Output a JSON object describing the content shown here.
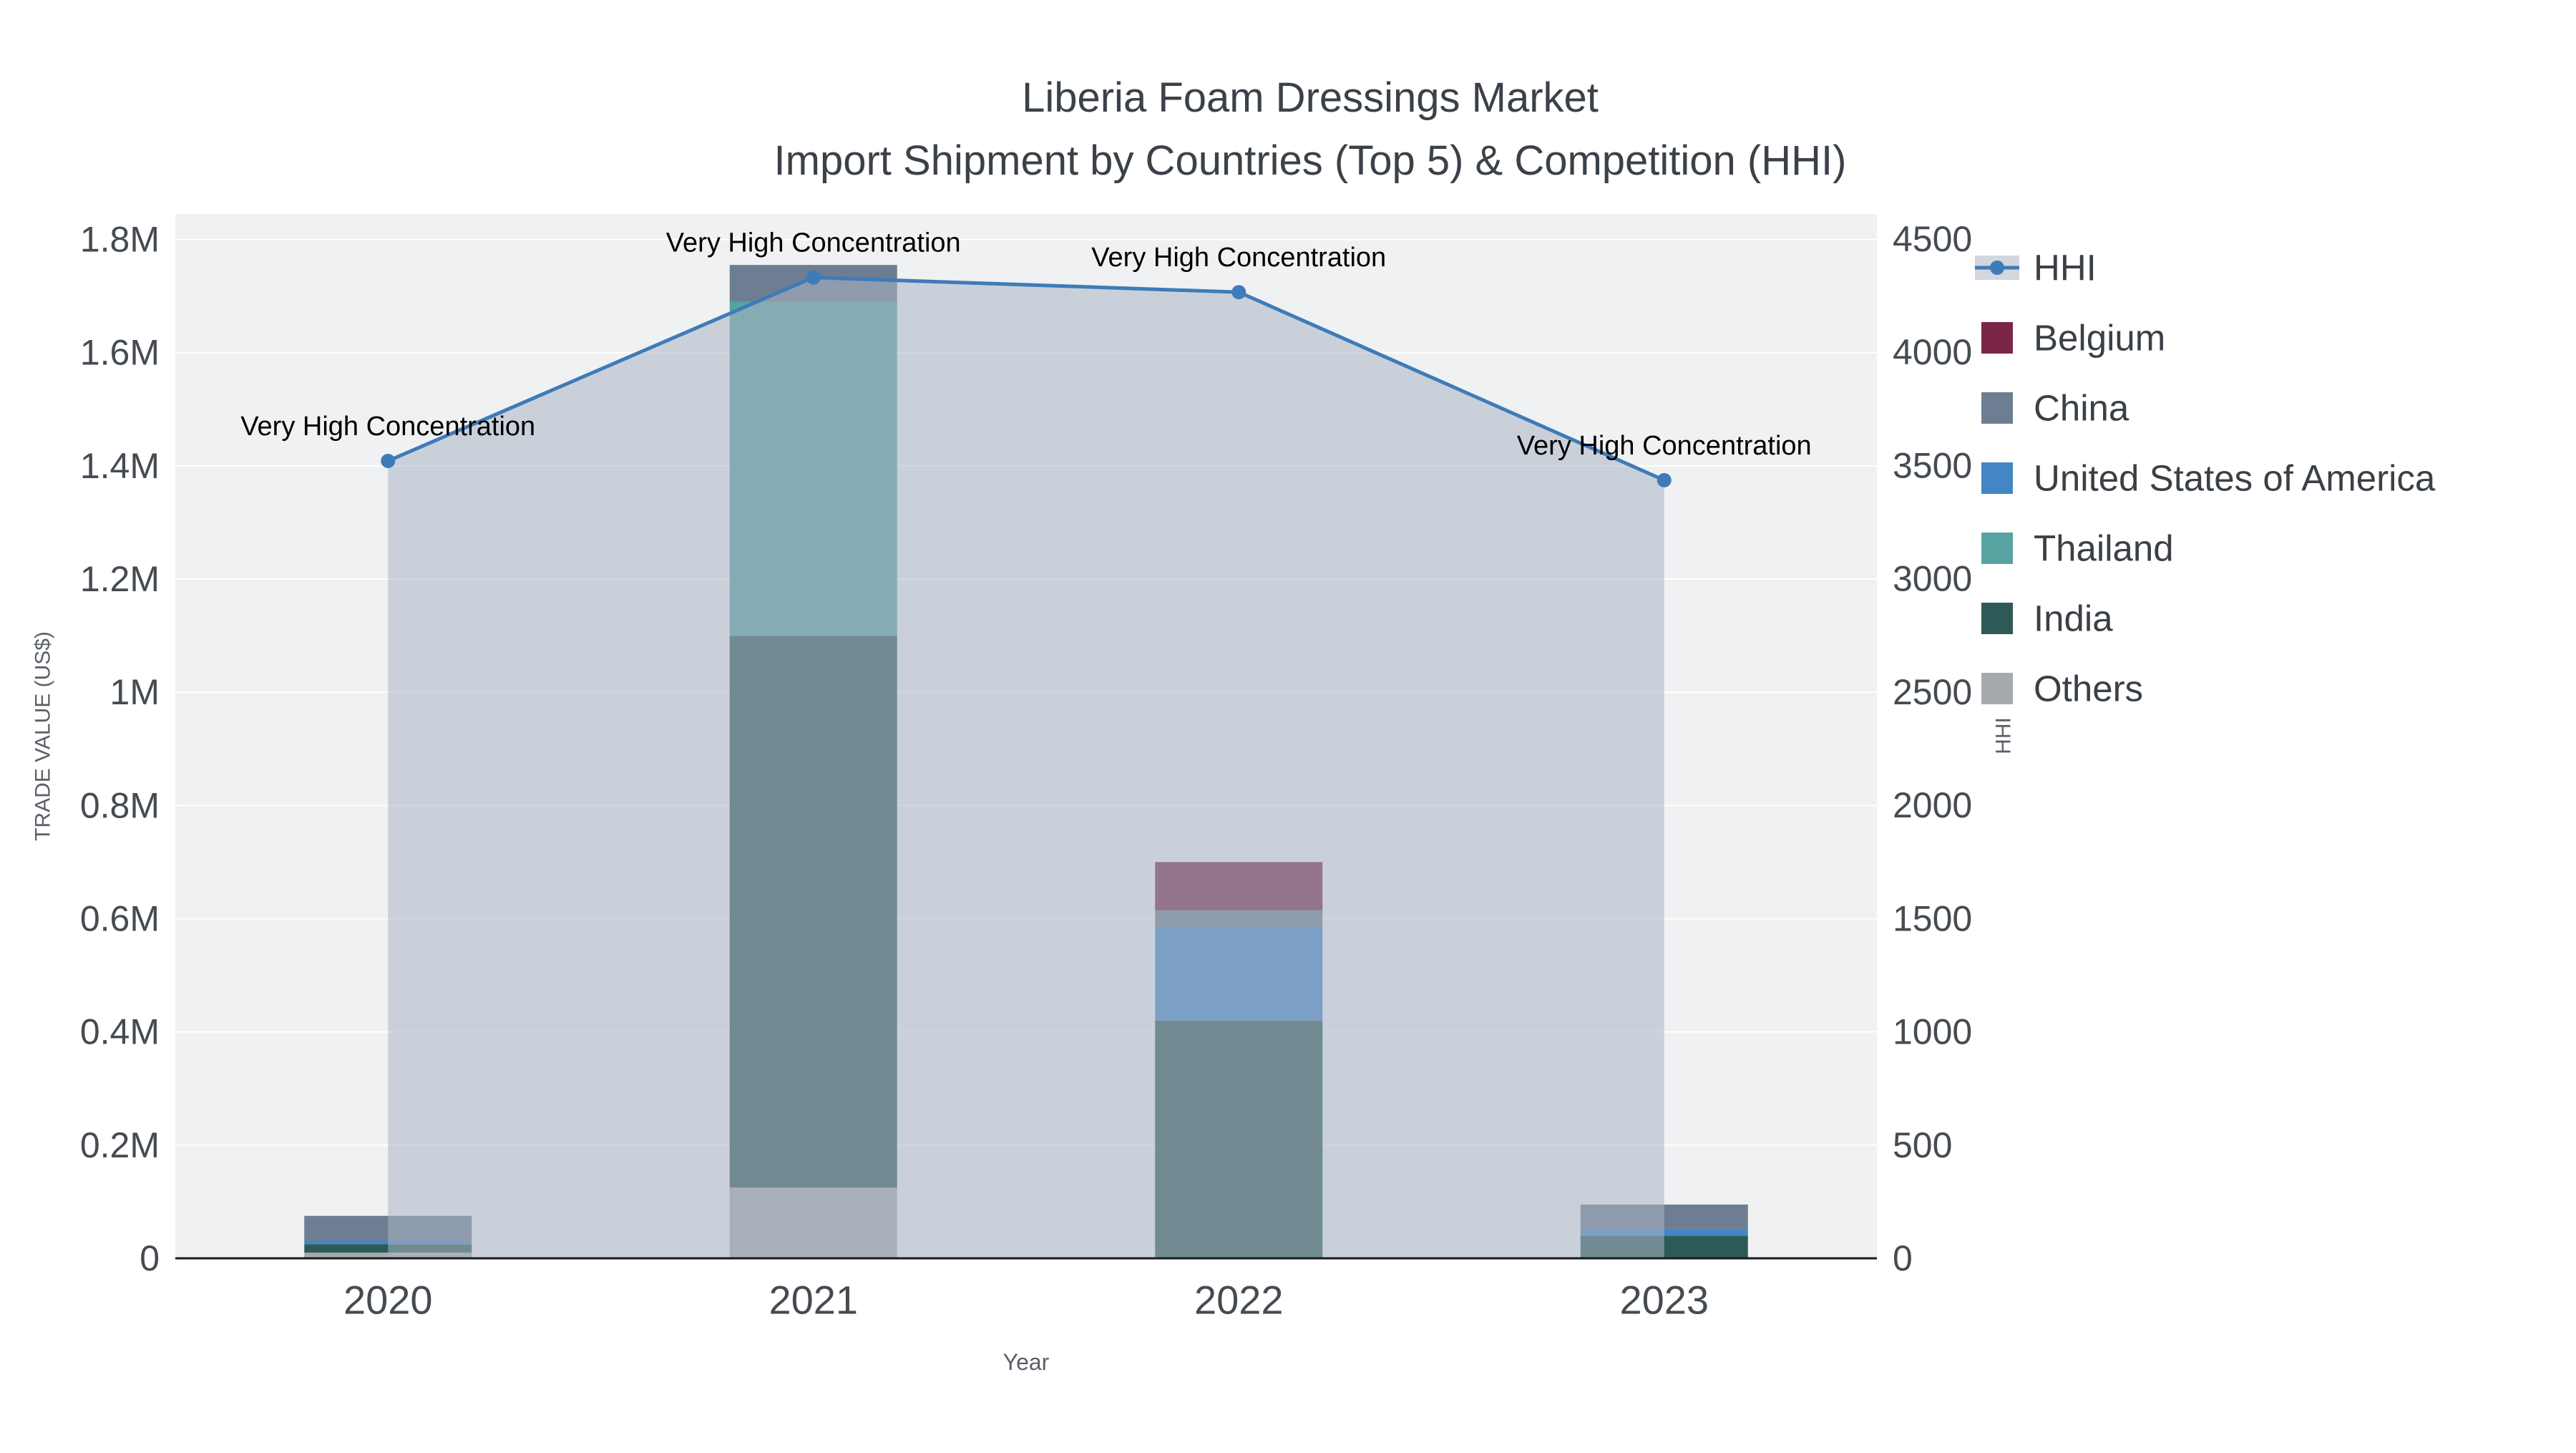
{
  "title": {
    "line1": "Liberia Foam Dressings Market",
    "line2": "Import Shipment by Countries (Top 5) & Competition (HHI)"
  },
  "chart_data": {
    "type": "bar",
    "subtype": "stacked-bar-with-line",
    "categories": [
      "2020",
      "2021",
      "2022",
      "2023"
    ],
    "values_unit": "million US$",
    "bar_series": [
      {
        "name": "Others",
        "color": "#a6aaaf",
        "values": [
          0.01,
          0.125,
          0,
          0
        ]
      },
      {
        "name": "India",
        "color": "#2d5a57",
        "values": [
          0.015,
          0.975,
          0.42,
          0.04
        ]
      },
      {
        "name": "Thailand",
        "color": "#57a3a2",
        "values": [
          0,
          0.59,
          0,
          0
        ]
      },
      {
        "name": "United States of America",
        "color": "#4286c5",
        "values": [
          0.006,
          0,
          0.165,
          0.012
        ]
      },
      {
        "name": "China",
        "color": "#6d7e93",
        "values": [
          0.044,
          0.065,
          0.03,
          0.043
        ]
      },
      {
        "name": "Belgium",
        "color": "#7b2649",
        "values": [
          0,
          0,
          0.085,
          0
        ]
      }
    ],
    "line_series": {
      "name": "HHI",
      "color": "#3e7bb8",
      "area_color": "rgba(172,181,196,0.55)",
      "values": [
        3520,
        4330,
        4265,
        3435
      ]
    },
    "annotations": [
      {
        "text": "Very High Concentration",
        "x_index": 0
      },
      {
        "text": "Very High Concentration",
        "x_index": 1
      },
      {
        "text": "Very High Concentration",
        "x_index": 2
      },
      {
        "text": "Very High Concentration",
        "x_index": 3
      }
    ],
    "x_axis": {
      "title": "Year"
    },
    "left_axis": {
      "title": "TRADE VALUE (US$)",
      "tick_labels": [
        "0",
        "0.2M",
        "0.4M",
        "0.6M",
        "0.8M",
        "1M",
        "1.2M",
        "1.4M",
        "1.6M",
        "1.8M"
      ],
      "tick_values": [
        0,
        0.2,
        0.4,
        0.6,
        0.8,
        1.0,
        1.2,
        1.4,
        1.6,
        1.8
      ],
      "max": 1.845
    },
    "right_axis": {
      "title": "HHI",
      "tick_labels": [
        "0",
        "500",
        "1000",
        "1500",
        "2000",
        "2500",
        "3000",
        "3500",
        "4000",
        "4500"
      ],
      "tick_values": [
        0,
        500,
        1000,
        1500,
        2000,
        2500,
        3000,
        3500,
        4000,
        4500
      ],
      "max": 4610
    },
    "legend": {
      "position": "right",
      "items": [
        "HHI",
        "Belgium",
        "China",
        "United States of America",
        "Thailand",
        "India",
        "Others"
      ]
    },
    "style": {
      "plot_bg": "#f0f1f2",
      "grid_color": "#ffffff",
      "axis_line_color": "#1a1a1a",
      "tick_text_color": "#454b52",
      "axis_title_color": "#5a6068",
      "annotation_color": "#000000",
      "legend_text_color": "#3a4046"
    }
  }
}
